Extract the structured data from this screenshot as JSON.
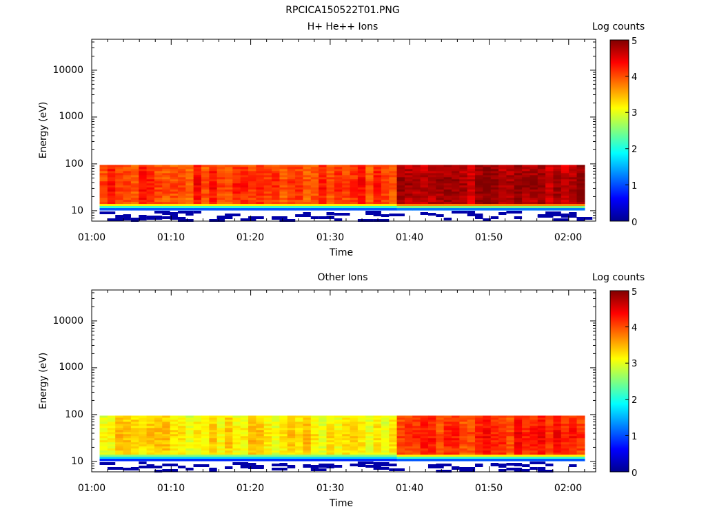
{
  "figure": {
    "title": "RPCICA150522T01.PNG"
  },
  "chart_data": [
    {
      "type": "heatmap",
      "title": "H+ He++ Ions",
      "xlabel": "Time",
      "ylabel": "Energy (eV)",
      "y_scale": "log",
      "ylim": [
        6,
        45000
      ],
      "x_tick_labels": [
        "01:00",
        "01:10",
        "01:20",
        "01:30",
        "01:40",
        "01:50",
        "02:00"
      ],
      "y_tick_labels": [
        "10",
        "100",
        "1000",
        "10000"
      ],
      "colorbar": {
        "label": "Log counts",
        "range": [
          0,
          5
        ],
        "ticks": [
          "0",
          "1",
          "2",
          "3",
          "4",
          "5"
        ]
      },
      "time_start": "01:01",
      "time_end": "02:02",
      "energy_band_top_eV": 95,
      "peak_log_counts_early": 4.2,
      "peak_log_counts_late": 4.9,
      "low_energy_fringe_log_counts": 0.2
    },
    {
      "type": "heatmap",
      "title": "Other Ions",
      "xlabel": "Time",
      "ylabel": "Energy (eV)",
      "y_scale": "log",
      "ylim": [
        6,
        45000
      ],
      "x_tick_labels": [
        "01:00",
        "01:10",
        "01:20",
        "01:30",
        "01:40",
        "01:50",
        "02:00"
      ],
      "y_tick_labels": [
        "10",
        "100",
        "1000",
        "10000"
      ],
      "colorbar": {
        "label": "Log counts",
        "range": [
          0,
          5
        ],
        "ticks": [
          "0",
          "1",
          "2",
          "3",
          "4",
          "5"
        ]
      },
      "time_start": "01:01",
      "time_end": "02:02",
      "energy_band_top_eV": 95,
      "peak_log_counts_early": 3.3,
      "peak_log_counts_late": 4.2,
      "low_energy_fringe_log_counts": 0.2
    }
  ]
}
